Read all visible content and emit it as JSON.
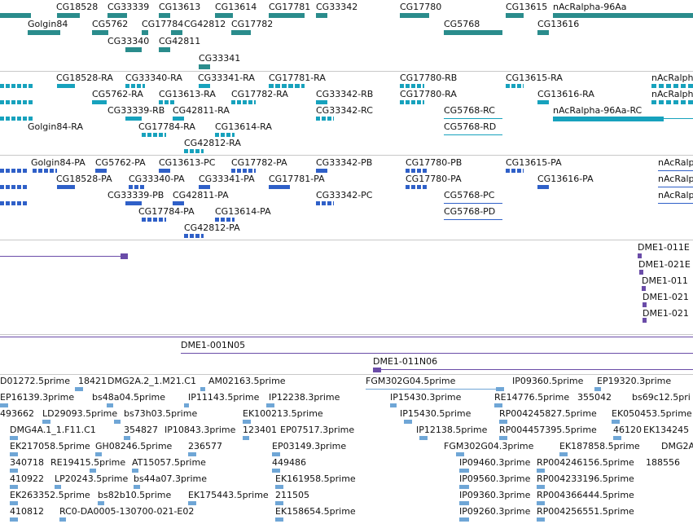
{
  "colors": {
    "gene": "#2a8c8c",
    "transcript": "#17a2bd",
    "protein": "#2f60c8",
    "clone": "#6a4ca8",
    "est": "#6fa6d6",
    "separator": "#c8c8c8",
    "text": "#111111"
  },
  "tracks": [
    {
      "id": "gene",
      "name": "gene-track",
      "labels": [
        "CG18528",
        "CG33339",
        "CG13613",
        "CG13614",
        "CG17781",
        "CG33342",
        "CG17780",
        "CG13615",
        "nAcRalpha-96Aa",
        "Golgin84",
        "CG5762",
        "CG17784",
        "CG42812",
        "CG17782",
        "CG5768",
        "CG13616",
        "CG33340",
        "CG42811",
        "CG33341"
      ]
    },
    {
      "id": "transcript",
      "name": "transcript-track",
      "labels": [
        "CG18528-RA",
        "CG33340-RA",
        "CG33341-RA",
        "CG17781-RA",
        "CG17780-RB",
        "CG13615-RA",
        "nAcRalph",
        "CG5762-RA",
        "CG13613-RA",
        "CG17782-RA",
        "CG33342-RB",
        "CG17780-RA",
        "CG13616-RA",
        "nAcRalph",
        "CG33339-RB",
        "CG42811-RA",
        "CG33342-RC",
        "CG5768-RC",
        "nAcRalpha-96Aa-RC",
        "Golgin84-RA",
        "CG17784-RA",
        "CG13614-RA",
        "CG5768-RD",
        "CG42812-RA"
      ]
    },
    {
      "id": "protein",
      "name": "protein-track",
      "labels": [
        "Golgin84-PA",
        "CG5762-PA",
        "CG13613-PC",
        "CG17782-PA",
        "CG33342-PB",
        "CG17780-PB",
        "CG13615-PA",
        "nAcRalph",
        "CG18528-PA",
        "CG33340-PA",
        "CG33341-PA",
        "CG17781-PA",
        "CG17780-PA",
        "CG13616-PA",
        "nAcRalph",
        "CG33339-PB",
        "CG42811-PA",
        "CG33342-PC",
        "CG5768-PC",
        "nAcRalph",
        "CG17784-PA",
        "CG13614-PA",
        "CG5768-PD",
        "CG42812-PA"
      ]
    },
    {
      "id": "clone",
      "name": "clone-track",
      "labels": [
        "DME1-011E",
        "DME1-021E",
        "DME1-011",
        "DME1-021",
        "DME1-021"
      ]
    },
    {
      "id": "clone2",
      "name": "clone-track-2",
      "labels": [
        "DME1-001N05",
        "DME1-011N06"
      ]
    },
    {
      "id": "est",
      "name": "est-track",
      "labels": [
        "D01272.5prime",
        "18421",
        "DMG2A.2_1.M21.C1",
        "AM02163.5prime",
        "FGM302G04.5prime",
        "IP09360.5prime",
        "EP19320.3prime",
        "EP16139.3prime",
        "bs48a04.5prime",
        "IP11143.5prime",
        "IP12238.3prime",
        "IP15430.3prime",
        "RE14776.5prime",
        "355042",
        "bs69c12.5pri",
        "493662",
        "LD29093.5prime",
        "bs73h03.5prime",
        "EK100213.5prime",
        "IP15430.5prime",
        "RP004245827.5prime",
        "EK050453.5prime",
        "DMG4A.1_1.F11.C1",
        "354827",
        "IP10843.3prime",
        "123401",
        "EP07517.3prime",
        "IP12138.5prime",
        "RP004457395.5prime",
        "46120",
        "EK134245",
        "EK217058.5prime",
        "GH08246.5prime",
        "236577",
        "EP03149.3prime",
        "FGM302G04.3prime",
        "EK187858.5prime",
        "DMG2A",
        "340718",
        "RE19415.5prime",
        "AT15057.5prime",
        "449486",
        "IP09460.3prime",
        "RP004246156.5prime",
        "188556",
        "410922",
        "LP20243.5prime",
        "bs44a07.3prime",
        "EK161958.5prime",
        "IP09560.3prime",
        "RP004233196.5prime",
        "EK263352.5prime",
        "bs82b10.5prime",
        "EK175443.5prime",
        "211505",
        "IP09360.3prime",
        "RP004366444.5prime",
        "410812",
        "RC0-DA0005-130700-021-E02",
        "EK158654.5prime",
        "IP09260.3prime",
        "RP004256551.5prime"
      ]
    }
  ]
}
